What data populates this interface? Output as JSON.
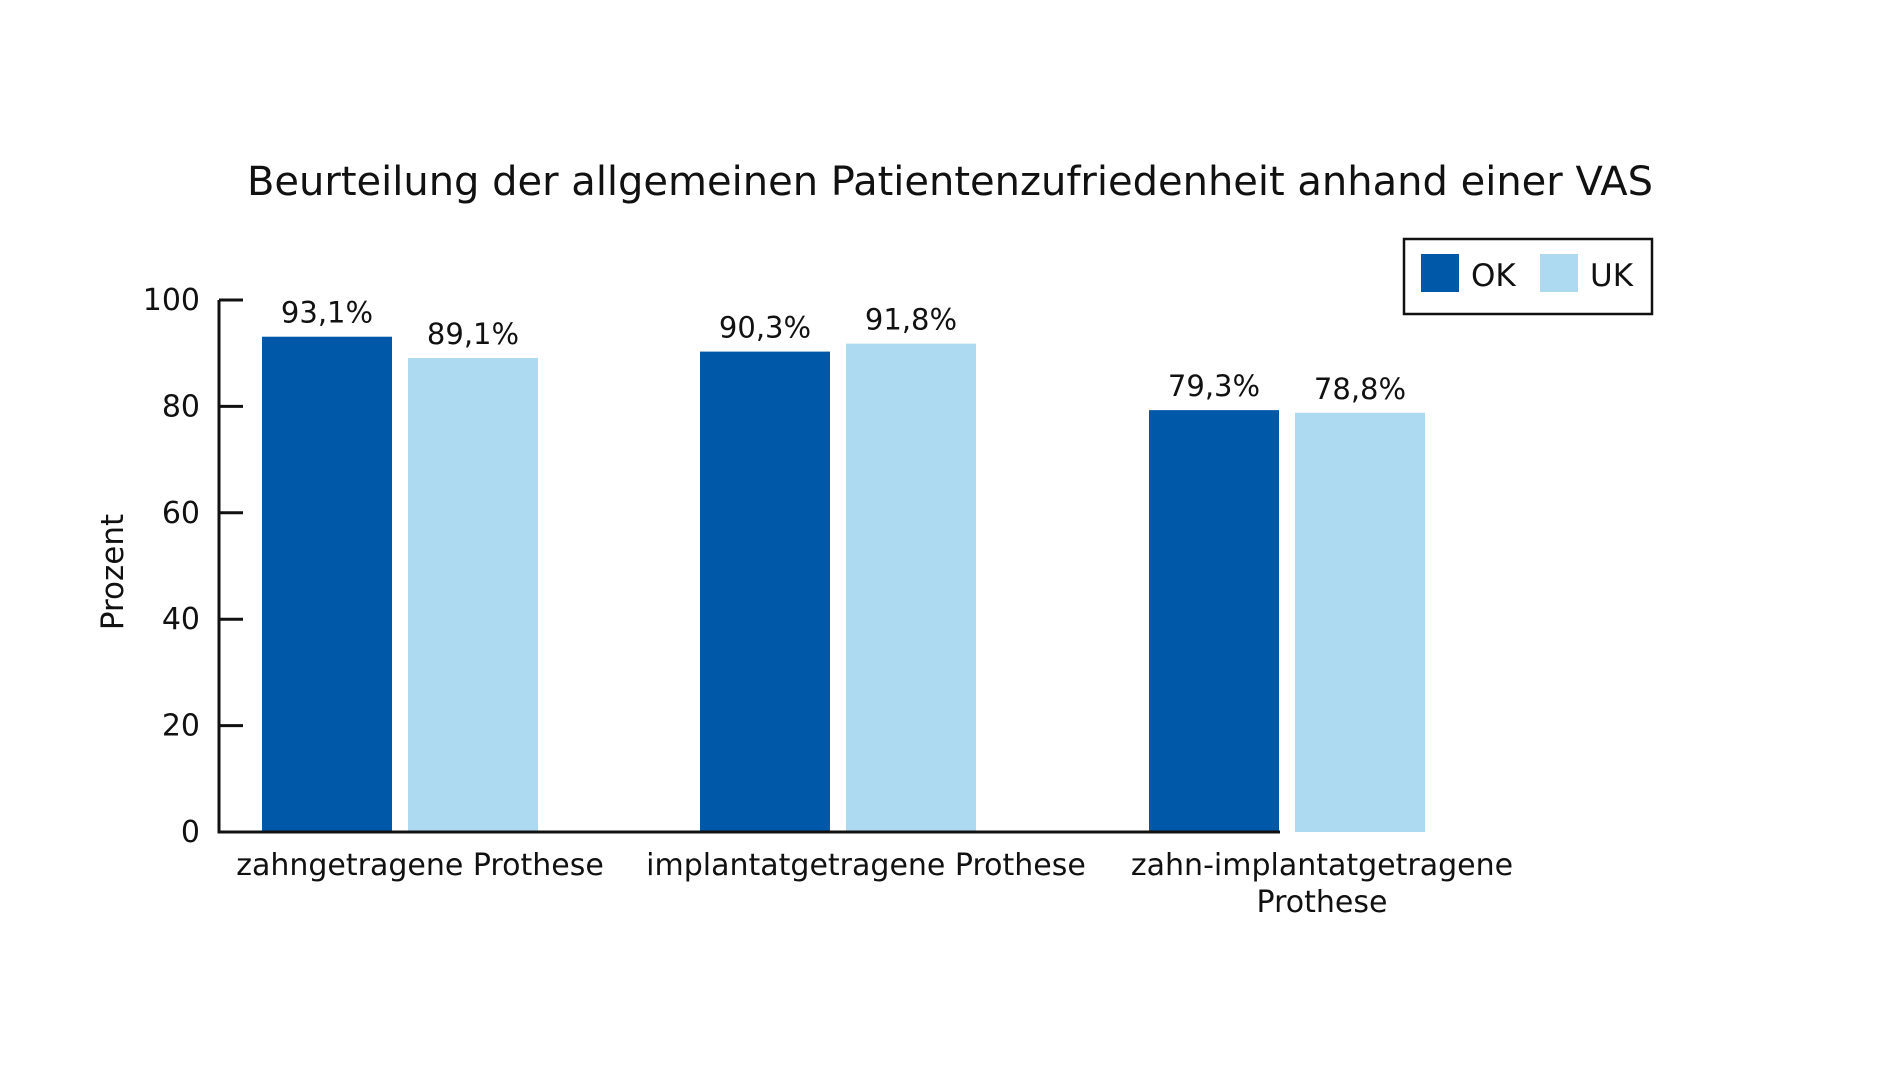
{
  "chart_data": {
    "type": "bar",
    "title": "Beurteilung der allgemeinen Patientenzufriedenheit anhand einer VAS",
    "xlabel": "",
    "ylabel": "Prozent",
    "ylim": [
      0,
      100
    ],
    "yticks": [
      0,
      20,
      40,
      60,
      80,
      100
    ],
    "categories": [
      [
        "zahngetragene Prothese"
      ],
      [
        "implantatgetragene Prothese"
      ],
      [
        "zahn-implantatgetragene",
        "Prothese"
      ]
    ],
    "series": [
      {
        "name": "OK",
        "color": "#0058a8",
        "values": [
          93.1,
          90.3,
          79.3
        ],
        "labels": [
          "93,1%",
          "90,3%",
          "79,3%"
        ]
      },
      {
        "name": "UK",
        "color": "#addaf0",
        "values": [
          89.1,
          91.8,
          78.8
        ],
        "labels": [
          "89,1%",
          "91,8%",
          "78,8%"
        ]
      }
    ],
    "grid": false,
    "legend_position": "top-right"
  }
}
